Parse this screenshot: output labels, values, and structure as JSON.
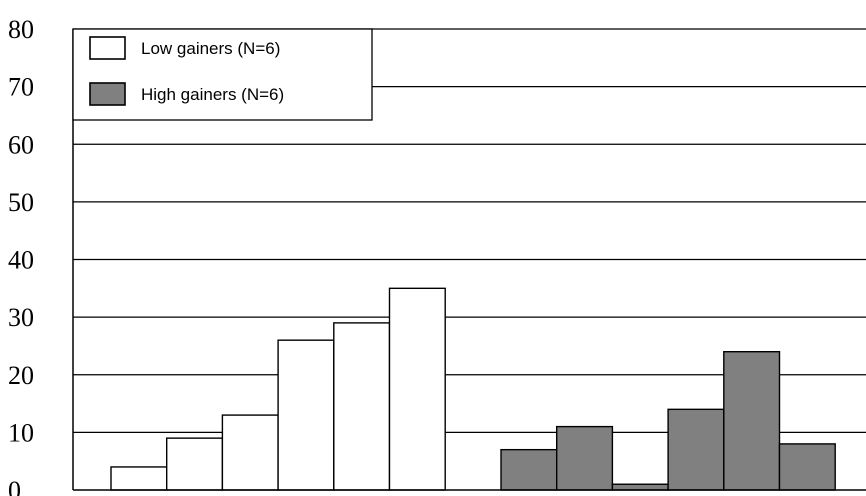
{
  "chart_data": {
    "type": "bar",
    "title": "",
    "xlabel": "",
    "ylabel": "",
    "ylim": [
      0,
      80
    ],
    "yticks": [
      "0",
      "10",
      "20",
      "30",
      "40",
      "50",
      "60",
      "70",
      "80"
    ],
    "grid": true,
    "legend_position": "top-left",
    "series": [
      {
        "name": "Low gainers (N=6)",
        "color": "#ffffff",
        "values": [
          4,
          9,
          13,
          26,
          29,
          35
        ]
      },
      {
        "name": "High gainers (N=6)",
        "color": "#808080",
        "values": [
          7,
          11,
          1,
          14,
          24,
          8
        ]
      }
    ]
  }
}
